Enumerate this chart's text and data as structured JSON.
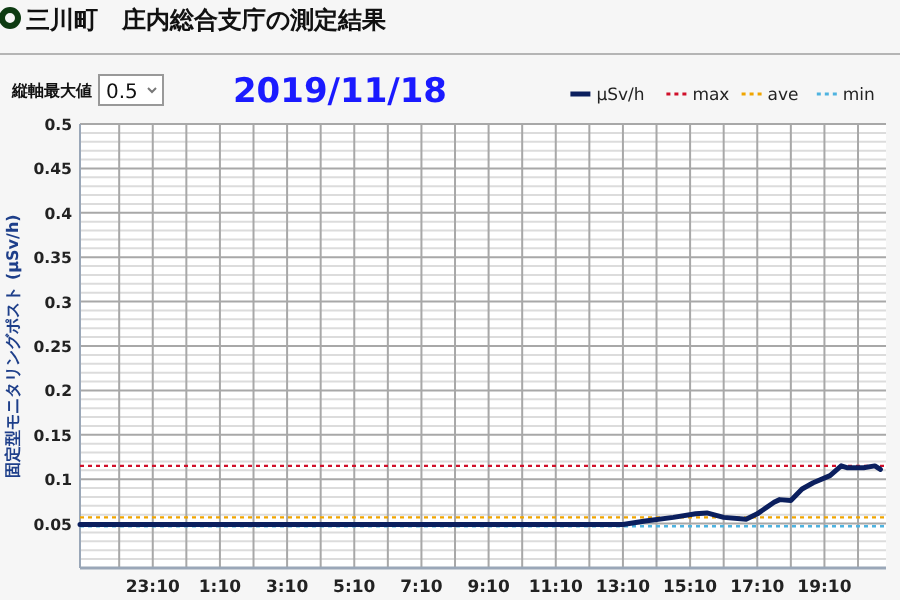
{
  "chart_data": {
    "type": "line",
    "title": "三川町　庄内総合支庁の測定結果",
    "subtitle": "2019/11/18",
    "ylabel": "固定型モニタリングポスト (μSv/h)",
    "annotations": [
      "縦軸最大値",
      "0.5"
    ],
    "x": [
      "2019-11-17T21:00",
      "2019-11-17T23:00",
      "2019-11-18T01:00",
      "2019-11-18T03:00",
      "2019-11-18T05:00",
      "2019-11-18T07:00",
      "2019-11-18T09:00",
      "2019-11-18T11:00",
      "2019-11-18T13:10",
      "2019-11-18T13:50",
      "2019-11-18T14:40",
      "2019-11-18T15:20",
      "2019-11-18T15:40",
      "2019-11-18T16:10",
      "2019-11-18T16:50",
      "2019-11-18T17:10",
      "2019-11-18T17:40",
      "2019-11-18T17:50",
      "2019-11-18T18:10",
      "2019-11-18T18:30",
      "2019-11-18T18:50",
      "2019-11-18T19:20",
      "2019-11-18T19:40",
      "2019-11-18T19:50",
      "2019-11-18T20:20",
      "2019-11-18T20:40",
      "2019-11-18T20:50"
    ],
    "series": [
      {
        "name": "μSv/h",
        "color": "#0b1f5e",
        "values": [
          0.049,
          0.049,
          0.049,
          0.049,
          0.049,
          0.049,
          0.049,
          0.049,
          0.049,
          0.053,
          0.057,
          0.061,
          0.062,
          0.057,
          0.055,
          0.061,
          0.074,
          0.077,
          0.076,
          0.089,
          0.096,
          0.104,
          0.115,
          0.113,
          0.113,
          0.115,
          0.111
        ]
      }
    ],
    "xlim": [
      "2019-11-17T21:00",
      "2019-11-18T21:00"
    ],
    "xticks": [
      {
        "value": "2019-11-17T22:10",
        "label": null
      },
      {
        "value": "2019-11-17T23:10",
        "label": "23:10"
      },
      {
        "value": "2019-11-18T00:10",
        "label": null
      },
      {
        "value": "2019-11-18T01:10",
        "label": "1:10"
      },
      {
        "value": "2019-11-18T02:10",
        "label": null
      },
      {
        "value": "2019-11-18T03:10",
        "label": "3:10"
      },
      {
        "value": "2019-11-18T04:10",
        "label": null
      },
      {
        "value": "2019-11-18T05:10",
        "label": "5:10"
      },
      {
        "value": "2019-11-18T06:10",
        "label": null
      },
      {
        "value": "2019-11-18T07:10",
        "label": "7:10"
      },
      {
        "value": "2019-11-18T08:10",
        "label": null
      },
      {
        "value": "2019-11-18T09:10",
        "label": "9:10"
      },
      {
        "value": "2019-11-18T10:10",
        "label": null
      },
      {
        "value": "2019-11-18T11:10",
        "label": "11:10"
      },
      {
        "value": "2019-11-18T12:10",
        "label": null
      },
      {
        "value": "2019-11-18T13:10",
        "label": "13:10"
      },
      {
        "value": "2019-11-18T14:10",
        "label": null
      },
      {
        "value": "2019-11-18T15:10",
        "label": "15:10"
      },
      {
        "value": "2019-11-18T16:10",
        "label": null
      },
      {
        "value": "2019-11-18T17:10",
        "label": "17:10"
      },
      {
        "value": "2019-11-18T18:10",
        "label": null
      },
      {
        "value": "2019-11-18T19:10",
        "label": "19:10"
      },
      {
        "value": "2019-11-18T20:10",
        "label": null
      }
    ],
    "ylim": [
      0,
      0.5
    ],
    "yticks": [
      {
        "value": 0,
        "label": null
      },
      {
        "value": 0.01,
        "label": null
      },
      {
        "value": 0.02,
        "label": null
      },
      {
        "value": 0.03,
        "label": null
      },
      {
        "value": 0.04,
        "label": null
      },
      0.05,
      {
        "value": 0.06,
        "label": null
      },
      {
        "value": 0.07,
        "label": null
      },
      {
        "value": 0.08,
        "label": null
      },
      {
        "value": 0.09,
        "label": null
      },
      0.1,
      {
        "value": 0.11,
        "label": null
      },
      {
        "value": 0.12,
        "label": null
      },
      {
        "value": 0.13,
        "label": null
      },
      {
        "value": 0.14,
        "label": null
      },
      0.15,
      {
        "value": 0.16,
        "label": null
      },
      {
        "value": 0.17,
        "label": null
      },
      {
        "value": 0.18,
        "label": null
      },
      {
        "value": 0.19,
        "label": null
      },
      0.2,
      {
        "value": 0.21,
        "label": null
      },
      {
        "value": 0.22,
        "label": null
      },
      {
        "value": 0.23,
        "label": null
      },
      {
        "value": 0.24,
        "label": null
      },
      0.25,
      {
        "value": 0.26,
        "label": null
      },
      {
        "value": 0.27,
        "label": null
      },
      {
        "value": 0.28,
        "label": null
      },
      {
        "value": 0.29,
        "label": null
      },
      0.3,
      {
        "value": 0.31,
        "label": null
      },
      {
        "value": 0.32,
        "label": null
      },
      {
        "value": 0.33,
        "label": null
      },
      {
        "value": 0.34,
        "label": null
      },
      0.35,
      {
        "value": 0.36,
        "label": null
      },
      {
        "value": 0.37,
        "label": null
      },
      {
        "value": 0.38,
        "label": null
      },
      {
        "value": 0.39,
        "label": null
      },
      0.4,
      {
        "value": 0.41,
        "label": null
      },
      {
        "value": 0.42,
        "label": null
      },
      {
        "value": 0.43,
        "label": null
      },
      {
        "value": 0.44,
        "label": null
      },
      0.45,
      {
        "value": 0.46,
        "label": null
      },
      {
        "value": 0.47,
        "label": null
      },
      {
        "value": 0.48,
        "label": null
      },
      {
        "value": 0.49,
        "label": null
      },
      0.5
    ],
    "ref_lines": [
      {
        "axis": "y",
        "value": 0.115,
        "label": "max",
        "color": "#d0102a",
        "line_style": "dotted"
      },
      {
        "axis": "y",
        "value": 0.057,
        "label": "ave",
        "color": "#f0a500",
        "line_style": "dotted"
      },
      {
        "axis": "y",
        "value": 0.047,
        "label": "min",
        "color": "#4fb3e0",
        "line_style": "dotted"
      }
    ],
    "grid": true,
    "legend": "top right",
    "marker": "none",
    "line_style": "solid"
  }
}
